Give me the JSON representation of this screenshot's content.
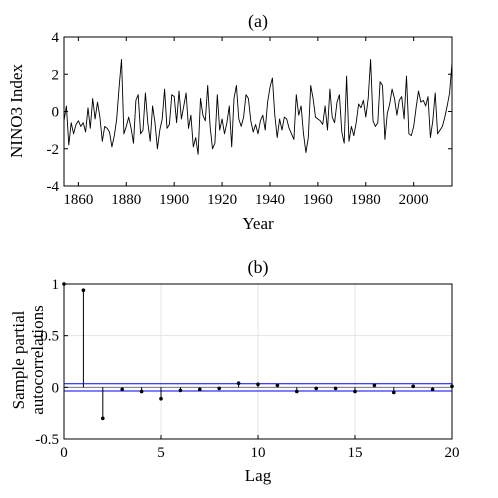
{
  "chart_data": [
    {
      "type": "line",
      "title": "(a)",
      "xlabel": "Year",
      "ylabel": "NINO3 Index",
      "xlim": [
        1854,
        2016
      ],
      "ylim": [
        -4,
        4
      ],
      "xticks": [
        1860,
        1880,
        1900,
        1920,
        1940,
        1960,
        1980,
        2000
      ],
      "yticks": [
        -4,
        -2,
        0,
        2,
        4
      ],
      "grid": false,
      "series": [
        {
          "color": "#000000",
          "x": [
            1854,
            1855,
            1856,
            1857,
            1858,
            1859,
            1860,
            1861,
            1862,
            1863,
            1864,
            1865,
            1866,
            1867,
            1868,
            1869,
            1870,
            1871,
            1872,
            1873,
            1874,
            1875,
            1876,
            1877,
            1878,
            1879,
            1880,
            1881,
            1882,
            1883,
            1884,
            1885,
            1886,
            1887,
            1888,
            1889,
            1890,
            1891,
            1892,
            1893,
            1894,
            1895,
            1896,
            1897,
            1898,
            1899,
            1900,
            1901,
            1902,
            1903,
            1904,
            1905,
            1906,
            1907,
            1908,
            1909,
            1910,
            1911,
            1912,
            1913,
            1914,
            1915,
            1916,
            1917,
            1918,
            1919,
            1920,
            1921,
            1922,
            1923,
            1924,
            1925,
            1926,
            1927,
            1928,
            1929,
            1930,
            1931,
            1932,
            1933,
            1934,
            1935,
            1936,
            1937,
            1938,
            1939,
            1940,
            1941,
            1942,
            1943,
            1944,
            1945,
            1946,
            1947,
            1948,
            1949,
            1950,
            1951,
            1952,
            1953,
            1954,
            1955,
            1956,
            1957,
            1958,
            1959,
            1960,
            1961,
            1962,
            1963,
            1964,
            1965,
            1966,
            1967,
            1968,
            1969,
            1970,
            1971,
            1972,
            1973,
            1974,
            1975,
            1976,
            1977,
            1978,
            1979,
            1980,
            1981,
            1982,
            1983,
            1984,
            1985,
            1986,
            1987,
            1988,
            1989,
            1990,
            1991,
            1992,
            1993,
            1994,
            1995,
            1996,
            1997,
            1998,
            1999,
            2000,
            2001,
            2002,
            2003,
            2004,
            2005,
            2006,
            2007,
            2008,
            2009,
            2010,
            2011,
            2012,
            2013,
            2014,
            2015,
            2016
          ],
          "y": [
            -0.5,
            0.3,
            -1.8,
            -0.6,
            -1.2,
            -0.7,
            -0.5,
            -0.8,
            -0.6,
            -1.1,
            0.2,
            -0.9,
            0.7,
            -0.4,
            0.5,
            -0.3,
            -1.6,
            -0.8,
            -0.9,
            -1.1,
            -1.9,
            -1.3,
            -0.4,
            1.3,
            2.8,
            -1.2,
            -0.8,
            -0.3,
            -0.9,
            -1.7,
            0.6,
            0.9,
            -1.2,
            -1.0,
            1.0,
            -0.6,
            -1.6,
            0.3,
            -0.6,
            -2.0,
            -1.0,
            -0.4,
            1.2,
            -0.9,
            -0.7,
            0.9,
            0.8,
            -0.6,
            1.1,
            -0.4,
            0.3,
            1.0,
            -0.9,
            -0.2,
            -1.9,
            -1.4,
            -2.3,
            0.7,
            -0.2,
            -0.5,
            1.4,
            -0.8,
            -2.0,
            -1.7,
            0.9,
            -1.0,
            -0.4,
            -1.2,
            -0.6,
            0.3,
            -1.9,
            0.7,
            1.4,
            -0.4,
            -0.8,
            -0.3,
            0.9,
            0.7,
            -0.5,
            -1.1,
            -0.7,
            -1.2,
            -0.5,
            -0.2,
            -1.0,
            0.5,
            1.3,
            1.8,
            -0.2,
            -1.4,
            -0.4,
            -1.0,
            -0.3,
            -0.4,
            -0.9,
            -1.2,
            -1.5,
            0.9,
            -0.2,
            0.3,
            -1.2,
            -2.2,
            -1.4,
            1.4,
            0.7,
            -0.3,
            -0.4,
            -0.5,
            -0.7,
            0.3,
            -1.0,
            1.2,
            -0.3,
            -0.6,
            0.5,
            0.9,
            -1.1,
            -1.7,
            1.9,
            -1.6,
            -0.8,
            -1.3,
            -0.6,
            0.4,
            0.2,
            0.6,
            -0.3,
            0.7,
            2.8,
            -0.5,
            -0.8,
            -0.6,
            1.6,
            1.4,
            -1.5,
            -0.1,
            0.4,
            1.2,
            0.7,
            -0.2,
            0.6,
            0.8,
            -0.4,
            1.9,
            -1.2,
            -1.3,
            -0.8,
            0.2,
            1.1,
            0.5,
            0.6,
            0.3,
            0.8,
            -1.4,
            -0.5,
            1.0,
            -1.2,
            -1.0,
            -0.8,
            -0.3,
            0.3,
            1.0,
            2.6
          ]
        }
      ]
    },
    {
      "type": "line",
      "title": "(b)",
      "xlabel": "Lag",
      "ylabel": "Sample partial autocorrelations",
      "xlim": [
        0,
        20
      ],
      "ylim": [
        -0.5,
        1
      ],
      "xticks": [
        0,
        5,
        10,
        15,
        20
      ],
      "yticks": [
        -0.5,
        0,
        0.5,
        1
      ],
      "grid": true,
      "confidence_bounds": [
        0.035,
        -0.035
      ],
      "bound_color": "#0000ff",
      "x": [
        0,
        1,
        2,
        3,
        4,
        5,
        6,
        7,
        8,
        9,
        10,
        11,
        12,
        13,
        14,
        15,
        16,
        17,
        18,
        19,
        20
      ],
      "series": [
        {
          "color": "#000000",
          "values": [
            1.0,
            0.94,
            -0.3,
            -0.02,
            -0.04,
            -0.11,
            -0.03,
            -0.02,
            -0.01,
            0.04,
            0.03,
            0.02,
            -0.04,
            -0.01,
            -0.01,
            -0.04,
            0.02,
            -0.05,
            0.01,
            -0.02,
            0.01
          ]
        }
      ]
    }
  ]
}
